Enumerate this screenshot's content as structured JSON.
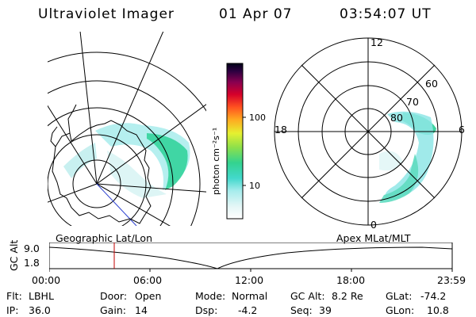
{
  "header": {
    "instrument": "Ultraviolet Imager",
    "date": "01 Apr 07",
    "time": "03:54:07 UT"
  },
  "colorbar": {
    "unit_label": "photon cm⁻²s⁻¹",
    "ticks": [
      "100",
      "10"
    ]
  },
  "polar_plot": {
    "mlt_labels": {
      "top": "12",
      "bottom": "0",
      "left": "18",
      "right": "6"
    },
    "lat_labels": [
      "60",
      "70",
      "80"
    ]
  },
  "timeline": {
    "left_title": "Geographic Lat/Lon",
    "right_title": "Apex MLat/MLT",
    "y_axis_label": "GC Alt",
    "y_ticks": [
      "9.0",
      "1.8"
    ],
    "x_ticks": [
      "00:00",
      "06:00",
      "12:00",
      "18:00",
      "23:59"
    ],
    "current_marker_colour": "#c00000"
  },
  "params": {
    "flt_label": "Flt:",
    "flt_value": "LBHL",
    "ip_label": "IP:",
    "ip_value": "36.0",
    "door_label": "Door:",
    "door_value": "Open",
    "gain_label": "Gain:",
    "gain_value": "14",
    "mode_label": "Mode:",
    "mode_value": "Normal",
    "dsp_label": "Dsp:",
    "dsp_value": "-4.2",
    "gcalt_label": "GC Alt:",
    "gcalt_value": "8.2 Re",
    "seq_label": "Seq:",
    "seq_value": "39",
    "glat_label": "GLat:",
    "glat_value": "-74.2",
    "glon_label": "GLon:",
    "glon_value": "10.8"
  },
  "colors": {
    "aurora_cyan": "#7fe0e0",
    "aurora_green": "#2ed08a",
    "grid": "#000000"
  }
}
